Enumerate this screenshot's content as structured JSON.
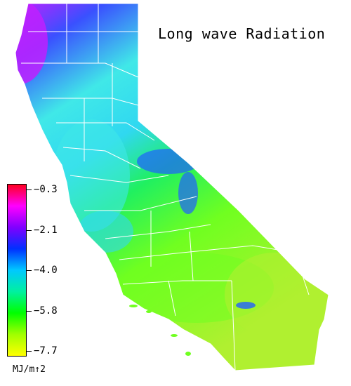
{
  "map": {
    "title": "Long wave Radiation",
    "unit": "MJ/m↑2",
    "legend": {
      "colors": [
        "#ff0020",
        "#ff00ff",
        "#8000ff",
        "#0030ff",
        "#00c8ff",
        "#00f0a0",
        "#00ff00",
        "#a0ff00",
        "#ffff00"
      ],
      "ticks": [
        "−0.3",
        "−2.1",
        "−4.0",
        "−5.8",
        "−7.7"
      ]
    },
    "region_colors": {
      "north_coast": "#c020ff",
      "north_interior": "#3a50ff",
      "sierra": "#2060ff",
      "central_valley": "#40e8e8",
      "coast": "#30d8f0",
      "central_east": "#20f060",
      "south": "#70ff20",
      "desert": "#b0f030",
      "boundary": "#ffffff"
    }
  }
}
